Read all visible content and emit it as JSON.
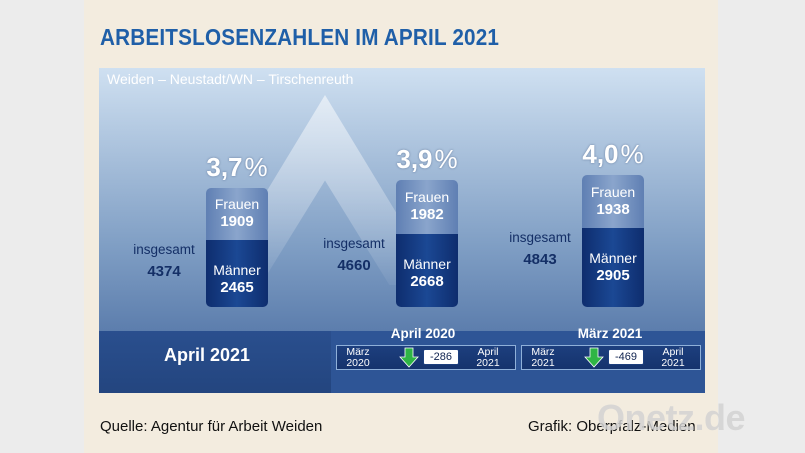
{
  "header": {
    "title": "ARBEITSLOSENZAHLEN IM APRIL 2021"
  },
  "chart_data": {
    "type": "bar",
    "subtitle": "Weiden – Neustadt/WN – Tirschenreuth",
    "categories": [
      "",
      "",
      ""
    ],
    "percent_suffix": "%",
    "series": [
      {
        "name": "Männer",
        "values": [
          2465,
          2668,
          2905
        ]
      },
      {
        "name": "Frauen",
        "values": [
          1909,
          1982,
          1938
        ]
      }
    ],
    "totals": [
      4374,
      4660,
      4843
    ],
    "total_label": "insgesamt",
    "rates": [
      "3,7",
      "3,9",
      "4,0"
    ],
    "base_period": "April 2021",
    "comparisons": [
      {
        "title": "April 2020",
        "from": "März\n2020",
        "delta": "-286",
        "to": "April\n2021",
        "direction": "down"
      },
      {
        "title": "März 2021",
        "from": "März\n2021",
        "delta": "-469",
        "to": "April\n2021",
        "direction": "down"
      }
    ],
    "colors": {
      "maenner": "#163d86",
      "frauen": "#7490bf",
      "arrow": "#2fb545",
      "title": "#1f5fa8"
    }
  },
  "footer": {
    "source": "Quelle: Agentur für Arbeit Weiden",
    "credit": "Grafik: Oberpfalz-Medien"
  },
  "branding": {
    "site_logo": "Onetz.de"
  }
}
